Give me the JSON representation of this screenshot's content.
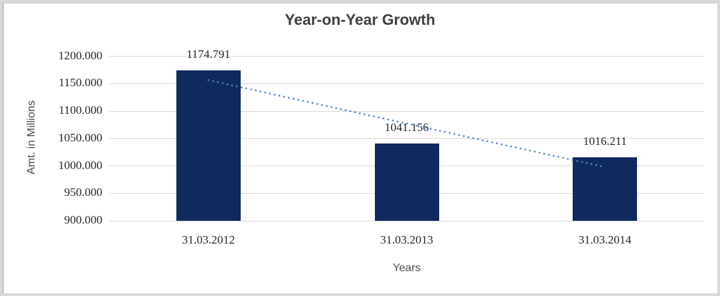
{
  "chart_data": {
    "type": "bar",
    "title": "Year-on-Year Growth",
    "xlabel": "Years",
    "ylabel": "Amt. in Millions",
    "categories": [
      "31.03.2012",
      "31.03.2013",
      "31.03.2014"
    ],
    "values": [
      1174.791,
      1041.156,
      1016.211
    ],
    "data_labels": [
      "1174.791",
      "1041.156",
      "1016.211"
    ],
    "ylim": [
      900,
      1200
    ],
    "ytick_step": 50,
    "ytick_labels": [
      "1200.000",
      "1150.000",
      "1100.000",
      "1050.000",
      "1000.000",
      "950.000",
      "900.000"
    ],
    "grid": true,
    "legend_position": "none",
    "trendline": {
      "type": "linear",
      "style": "dotted",
      "start_value": 1156.68,
      "end_value": 998.1
    },
    "colors": {
      "bar": "#102a60",
      "trendline": "#4e86c6",
      "gridline": "#d9d9d9",
      "title_text": "#3f3f3f",
      "tick_text": "#262626",
      "axis_label_text": "#4a4a4a"
    }
  }
}
